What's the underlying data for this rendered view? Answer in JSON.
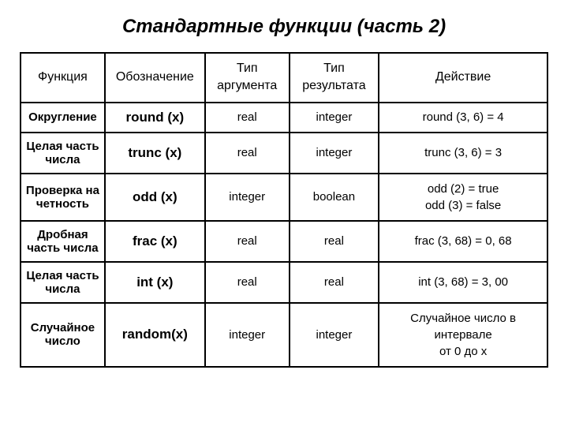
{
  "title": "Стандартные функции (часть 2)",
  "headers": {
    "function": "Функция",
    "notation": "Обозначение",
    "argtype_line1": "Тип",
    "argtype_line2": "аргумента",
    "restype_line1": "Тип",
    "restype_line2": "результата",
    "action": "Действие"
  },
  "rows": [
    {
      "function": "Округление",
      "notation": "round (x)",
      "argtype": "real",
      "restype": "integer",
      "action": "round (3, 6) = 4"
    },
    {
      "function": "Целая часть числа",
      "notation": "trunc (x)",
      "argtype": "real",
      "restype": "integer",
      "action": "trunc (3, 6) = 3"
    },
    {
      "function": "Проверка на четность",
      "notation": "odd (x)",
      "argtype": "integer",
      "restype": "boolean",
      "action_line1": "odd (2) = true",
      "action_line2": "odd (3) = false"
    },
    {
      "function": "Дробная часть числа",
      "notation": "frac (x)",
      "argtype": "real",
      "restype": "real",
      "action": "frac (3, 68) = 0, 68"
    },
    {
      "function": "Целая часть числа",
      "notation": "int (x)",
      "argtype": "real",
      "restype": "real",
      "action": "int (3, 68) = 3, 00"
    },
    {
      "function": "Случайное число",
      "notation": "random(x)",
      "argtype": "integer",
      "restype": "integer",
      "action_line1": "Случайное число в",
      "action_line2": "интервале",
      "action_line3": "от 0 до x"
    }
  ]
}
